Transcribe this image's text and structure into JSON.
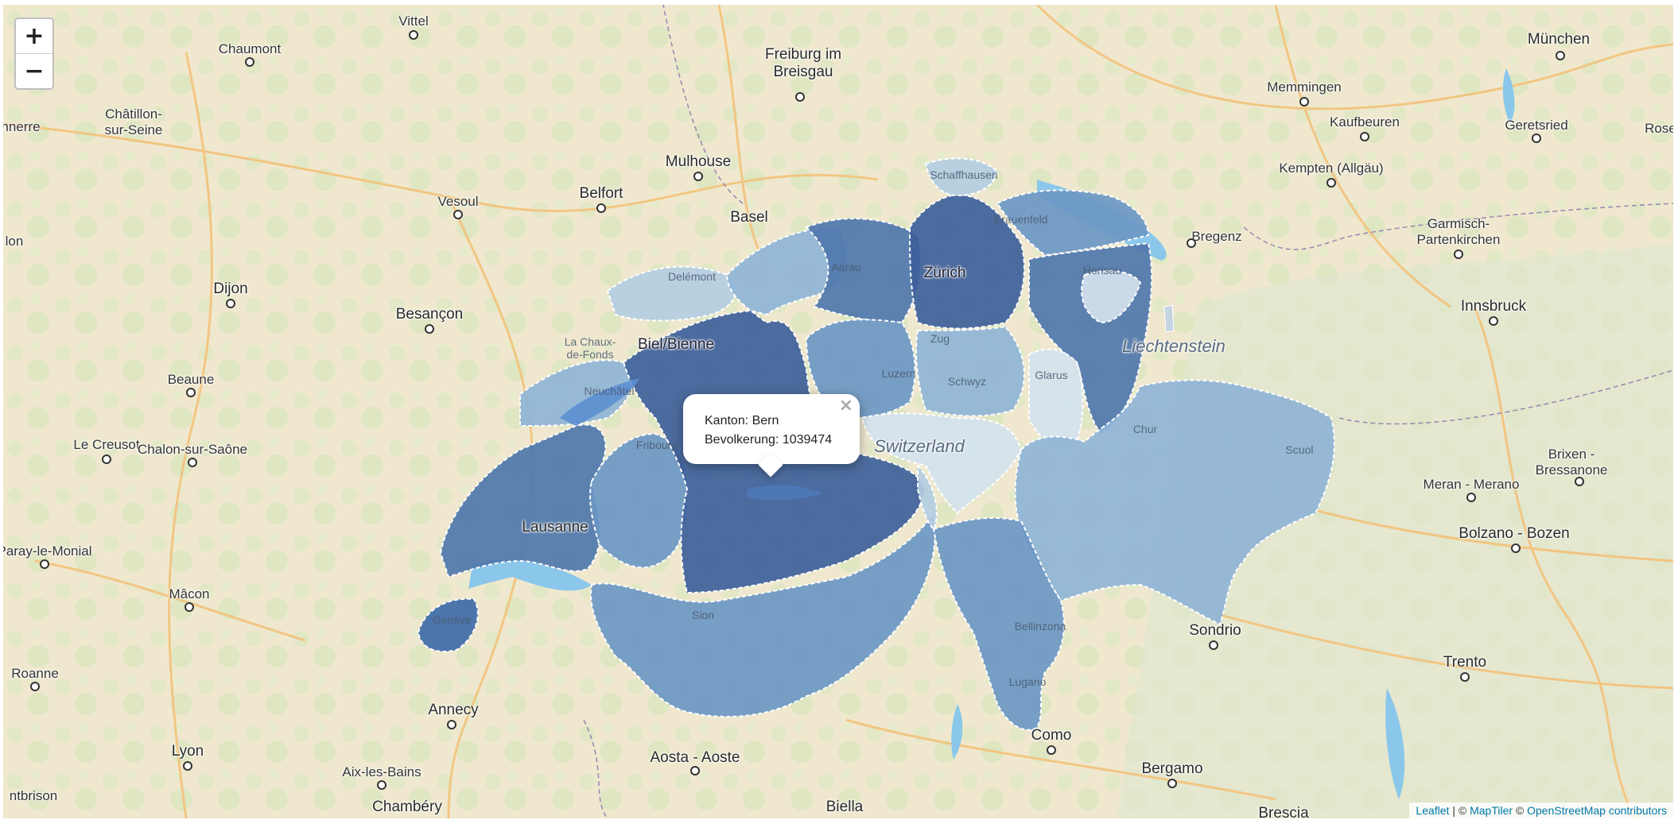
{
  "map": {
    "zoom_in_label": "+",
    "zoom_out_label": "−",
    "country_label": "Switzerland",
    "liechtenstein_label": "Liechtenstein",
    "popup": {
      "line1": "Kanton: Bern",
      "line2": "Bevolkerung: 1039474",
      "close_label": "×"
    },
    "attribution": {
      "leaflet": "Leaflet",
      "sep": " | © ",
      "maptiler": "MapTiler",
      "sep2": " © ",
      "osm": "OpenStreetMap contributors"
    },
    "cities": {
      "vittel": "Vittel",
      "chaumont": "Chaumont",
      "freiburg": "Freiburg im\nBreisgau",
      "muenchen": "München",
      "memmingen": "Memmingen",
      "chatillon": "Châtillon-\nsur-Seine",
      "nnerre": "nnerre",
      "kaufbeuren": "Kaufbeuren",
      "geretsried": "Geretsried",
      "rose": "Rose",
      "mulhouse": "Mulhouse",
      "kempten": "Kempten (Allgäu)",
      "belfort": "Belfort",
      "vesoul": "Vesoul",
      "basel": "Basel",
      "garmisch": "Garmisch-\nPartenkirchen",
      "bregenz": "Bregenz",
      "lon": "lon",
      "dijon": "Dijon",
      "besancon": "Besançon",
      "innsbruck": "Innsbruck",
      "beaune": "Beaune",
      "lecreusot": "Le Creusot",
      "chalon": "Chalon-sur-Saône",
      "merano": "Meran - Merano",
      "brixen": "Brixen -\nBressanone",
      "lausanne": "Lausanne",
      "bolzano": "Bolzano - Bozen",
      "paray": "Paray-le-Monial",
      "macon": "Mâcon",
      "sondrio": "Sondrio",
      "roanne": "Roanne",
      "trento": "Trento",
      "annecy": "Annecy",
      "como": "Como",
      "aosta": "Aosta - Aoste",
      "bergamo": "Bergamo",
      "lyon": "Lyon",
      "aixlesbains": "Aix-les-Bains",
      "montbrison": "ntbrison",
      "chambery": "Chambéry",
      "biella": "Biella",
      "brescia": "Brescia"
    },
    "canton_labels": {
      "zurich": "Zürich",
      "biel": "Biel/Bienne",
      "schaffhausen": "Schaffhausen",
      "frauenfeld": "Frauenfeld",
      "herisau": "Herisau",
      "aarau": "Aarau",
      "delemont": "Delémont",
      "lachaux": "La Chaux-\nde-Fonds",
      "neuchatel": "Neuchâtel",
      "zug": "Zug",
      "luzern": "Luzern",
      "schwyz": "Schwyz",
      "glarus": "Glarus",
      "chur": "Chur",
      "scuol": "Scuol",
      "fribourg": "Fribourg",
      "sion": "Sion",
      "bellinzona": "Bellinzona",
      "lugano": "Lugano",
      "geneve": "Genève"
    },
    "colors": {
      "canton_darkest": "#3e5f9a",
      "canton_dark": "#4f77ad",
      "canton_mid": "#6c97c4",
      "canton_light": "#8fb4d6",
      "canton_lighter": "#b3cde2",
      "canton_lightest": "#d4e2ee",
      "lake": "#8bc7ea",
      "land": "#f4ecd6"
    }
  }
}
